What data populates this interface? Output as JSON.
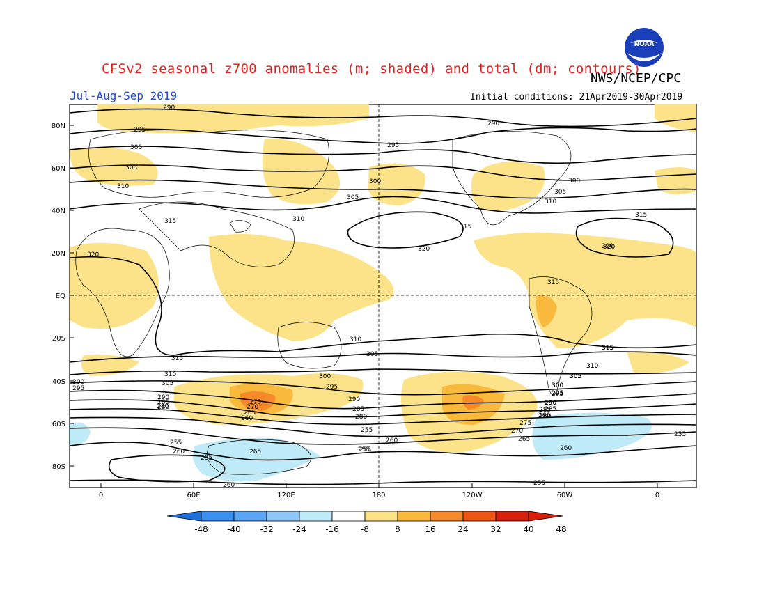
{
  "header": {
    "title": "CFSv2 seasonal z700 anomalies (m; shaded) and total (dm; contours)",
    "agency": "NWS/NCEP/CPC",
    "season": "Jul-Aug-Sep 2019",
    "initial_conditions": "Initial conditions: 21Apr2019-30Apr2019",
    "logo_text": "NOAA"
  },
  "axes": {
    "lat_labels": [
      "80N",
      "60N",
      "40N",
      "20N",
      "EQ",
      "20S",
      "40S",
      "60S",
      "80S"
    ],
    "lon_labels": [
      "0",
      "60E",
      "120E",
      "180",
      "120W",
      "60W",
      "0"
    ]
  },
  "colorbar": {
    "labels": [
      "-48",
      "-40",
      "-32",
      "-24",
      "-16",
      "-8",
      "8",
      "16",
      "24",
      "32",
      "40",
      "48"
    ],
    "colors": [
      "#1e6fdc",
      "#3b8ff0",
      "#5aa6f4",
      "#8fc6f8",
      "#bfeaf8",
      "#ffffff",
      "#fce38a",
      "#f9b93c",
      "#f6892a",
      "#f05414",
      "#d8200c"
    ]
  },
  "contour_labels": [
    "290",
    "295",
    "300",
    "305",
    "310",
    "315",
    "320",
    "300",
    "305",
    "310",
    "315",
    "320",
    "290",
    "295",
    "300",
    "305",
    "310",
    "315",
    "320",
    "310",
    "315",
    "305",
    "300",
    "295",
    "290",
    "285",
    "280",
    "275",
    "270",
    "265",
    "260",
    "255",
    "260",
    "265",
    "255",
    "260",
    "255",
    "280",
    "310",
    "305",
    "300",
    "295",
    "290",
    "285",
    "280",
    "260",
    "255",
    "300",
    "295",
    "290",
    "285",
    "280",
    "275",
    "270",
    "265",
    "260",
    "255",
    "255",
    "310",
    "305",
    "300",
    "295",
    "290",
    "260",
    "255",
    "315",
    "315",
    "320",
    "315",
    "310",
    "305",
    "300",
    "295",
    "290",
    "285",
    "280"
  ]
}
